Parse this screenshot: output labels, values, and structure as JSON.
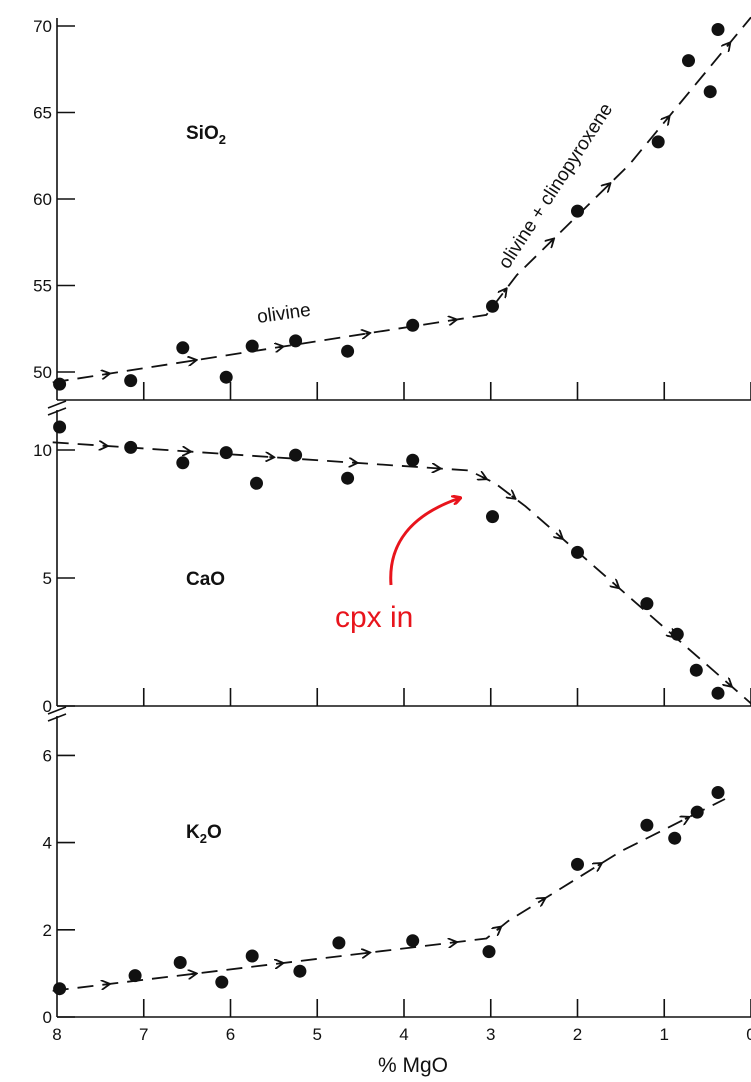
{
  "chart_data": {
    "type": "scatter",
    "xlabel": "% MgO",
    "x_ticks": [
      8,
      7,
      6,
      5,
      4,
      3,
      2,
      1,
      0
    ],
    "xlim": [
      8,
      0
    ],
    "colors": {
      "points": "#111111",
      "trend": "#111111",
      "annotation": "#e8141c"
    },
    "panels": [
      {
        "label_main": "SiO",
        "label_sub": "2",
        "y_ticks": [
          50,
          55,
          60,
          65,
          70
        ],
        "ylim": [
          49.0,
          70.0
        ],
        "trend_labels": [
          "olivine",
          "olivine + clinopyroxene"
        ],
        "points": [
          {
            "x": 7.97,
            "y": 49.3
          },
          {
            "x": 7.15,
            "y": 49.5
          },
          {
            "x": 6.55,
            "y": 51.4
          },
          {
            "x": 6.05,
            "y": 49.7
          },
          {
            "x": 5.75,
            "y": 51.5
          },
          {
            "x": 5.25,
            "y": 51.8
          },
          {
            "x": 4.65,
            "y": 51.2
          },
          {
            "x": 3.9,
            "y": 52.7
          },
          {
            "x": 2.98,
            "y": 53.8
          },
          {
            "x": 2.0,
            "y": 59.3
          },
          {
            "x": 1.07,
            "y": 63.3
          },
          {
            "x": 0.72,
            "y": 68.0
          },
          {
            "x": 0.47,
            "y": 66.2
          },
          {
            "x": 0.38,
            "y": 69.8
          }
        ],
        "trend": [
          {
            "x": 8.05,
            "y": 49.4
          },
          {
            "x": 3.05,
            "y": 53.3
          },
          {
            "x": 2.7,
            "y": 55.6
          },
          {
            "x": 1.4,
            "y": 62.0
          },
          {
            "x": 0.0,
            "y": 70.5
          }
        ]
      },
      {
        "label_main": "CaO",
        "label_sub": "",
        "y_ticks": [
          0,
          5,
          10
        ],
        "ylim": [
          0,
          10.9
        ],
        "trend_labels": [],
        "annotation": "cpx in",
        "points": [
          {
            "x": 7.97,
            "y": 10.9
          },
          {
            "x": 7.15,
            "y": 10.1
          },
          {
            "x": 6.55,
            "y": 9.5
          },
          {
            "x": 6.05,
            "y": 9.9
          },
          {
            "x": 5.7,
            "y": 8.7
          },
          {
            "x": 5.25,
            "y": 9.8
          },
          {
            "x": 4.65,
            "y": 8.9
          },
          {
            "x": 3.9,
            "y": 9.6
          },
          {
            "x": 2.98,
            "y": 7.4
          },
          {
            "x": 2.0,
            "y": 6.0
          },
          {
            "x": 1.2,
            "y": 4.0
          },
          {
            "x": 0.85,
            "y": 2.8
          },
          {
            "x": 0.63,
            "y": 1.4
          },
          {
            "x": 0.38,
            "y": 0.5
          }
        ],
        "trend": [
          {
            "x": 8.05,
            "y": 10.3
          },
          {
            "x": 3.25,
            "y": 9.2
          },
          {
            "x": 2.95,
            "y": 8.7
          },
          {
            "x": 2.6,
            "y": 7.8
          },
          {
            "x": 0.0,
            "y": 0.1
          }
        ]
      },
      {
        "label_main": "K",
        "label_sub": "2",
        "label_tail": "O",
        "y_ticks": [
          0,
          2,
          4,
          6
        ],
        "ylim": [
          0,
          6.5
        ],
        "trend_labels": [],
        "points": [
          {
            "x": 7.97,
            "y": 0.65
          },
          {
            "x": 7.1,
            "y": 0.95
          },
          {
            "x": 6.58,
            "y": 1.25
          },
          {
            "x": 6.1,
            "y": 0.8
          },
          {
            "x": 5.75,
            "y": 1.4
          },
          {
            "x": 5.2,
            "y": 1.05
          },
          {
            "x": 4.75,
            "y": 1.7
          },
          {
            "x": 3.9,
            "y": 1.75
          },
          {
            "x": 3.02,
            "y": 1.5
          },
          {
            "x": 2.0,
            "y": 3.5
          },
          {
            "x": 1.2,
            "y": 4.4
          },
          {
            "x": 0.88,
            "y": 4.1
          },
          {
            "x": 0.62,
            "y": 4.7
          },
          {
            "x": 0.38,
            "y": 5.15
          }
        ],
        "trend": [
          {
            "x": 8.05,
            "y": 0.6
          },
          {
            "x": 3.05,
            "y": 1.8
          },
          {
            "x": 2.8,
            "y": 2.2
          },
          {
            "x": 1.5,
            "y": 3.8
          },
          {
            "x": 0.3,
            "y": 5.0
          }
        ]
      }
    ]
  }
}
